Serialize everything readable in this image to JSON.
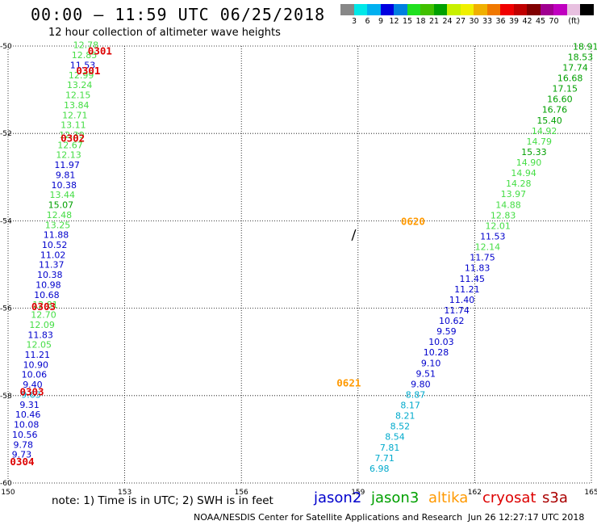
{
  "header": {
    "title": "00:00 – 11:59 UTC 06/25/2018",
    "subtitle": "12 hour collection of altimeter wave heights"
  },
  "legend": {
    "unit": "(ft)",
    "colors": [
      "#888888",
      "#00e8e8",
      "#00b0f0",
      "#0000e0",
      "#0080e0",
      "#20e020",
      "#40c000",
      "#00a000",
      "#c8f000",
      "#f0f000",
      "#f0b000",
      "#f07800",
      "#f00000",
      "#c00000",
      "#800000",
      "#a00090",
      "#c000c0",
      "#e8c0e0",
      "#000000"
    ],
    "labels": [
      "3",
      "6",
      "9",
      "12",
      "15",
      "18",
      "21",
      "24",
      "27",
      "30",
      "33",
      "36",
      "39",
      "42",
      "45",
      "70"
    ]
  },
  "axes": {
    "lon_ticks": [
      150,
      153,
      156,
      159,
      162,
      165
    ],
    "lat_ticks": [
      -50,
      -52,
      -54,
      -56,
      -58,
      -60
    ]
  },
  "colors": {
    "jason2": "#0000cc",
    "jason3": "#00a000",
    "altika": "#ff9900",
    "cryosat": "#dd0000",
    "s3a": "#aa0000",
    "yellow": "#ccdd00",
    "cyan": "#00aacc",
    "lightgreen": "#44dd44"
  },
  "passes": [
    {
      "time": "0301",
      "lon": 152.05,
      "lat": -50.1,
      "color": "cryosat"
    },
    {
      "time": "0301",
      "lon": 151.75,
      "lat": -50.55,
      "color": "cryosat"
    },
    {
      "time": "0302",
      "lon": 151.35,
      "lat": -52.1,
      "color": "cryosat"
    },
    {
      "time": "0303",
      "lon": 150.6,
      "lat": -55.95,
      "color": "cryosat"
    },
    {
      "time": "0303",
      "lon": 150.3,
      "lat": -57.9,
      "color": "cryosat"
    },
    {
      "time": "0304",
      "lon": 150.05,
      "lat": -59.5,
      "color": "cryosat"
    },
    {
      "time": "0620",
      "lon": 160.1,
      "lat": -54.0,
      "color": "altika"
    },
    {
      "time": "0621",
      "lon": 158.45,
      "lat": -57.7,
      "color": "altika"
    }
  ],
  "left_track": [
    {
      "v": "12.78",
      "c": "lightgreen"
    },
    {
      "v": "12.85",
      "c": "lightgreen"
    },
    {
      "v": "11.53",
      "c": "jason2"
    },
    {
      "v": "12.99",
      "c": "lightgreen"
    },
    {
      "v": "13.24",
      "c": "lightgreen"
    },
    {
      "v": "12.15",
      "c": "lightgreen"
    },
    {
      "v": "13.84",
      "c": "lightgreen"
    },
    {
      "v": "12.71",
      "c": "lightgreen"
    },
    {
      "v": "13.11",
      "c": "lightgreen"
    },
    {
      "v": "12.39",
      "c": "lightgreen"
    },
    {
      "v": "12.67",
      "c": "lightgreen"
    },
    {
      "v": "12.13",
      "c": "lightgreen"
    },
    {
      "v": "11.97",
      "c": "jason2"
    },
    {
      "v": "9.81",
      "c": "jason2"
    },
    {
      "v": "10.38",
      "c": "jason2"
    },
    {
      "v": "13.44",
      "c": "lightgreen"
    },
    {
      "v": "15.07",
      "c": "jason3"
    },
    {
      "v": "12.48",
      "c": "lightgreen"
    },
    {
      "v": "13.25",
      "c": "lightgreen"
    },
    {
      "v": "11.88",
      "c": "jason2"
    },
    {
      "v": "10.52",
      "c": "jason2"
    },
    {
      "v": "11.02",
      "c": "jason2"
    },
    {
      "v": "11.37",
      "c": "jason2"
    },
    {
      "v": "10.38",
      "c": "jason2"
    },
    {
      "v": "10.98",
      "c": "jason2"
    },
    {
      "v": "10.68",
      "c": "jason2"
    },
    {
      "v": "12.81",
      "c": "lightgreen"
    },
    {
      "v": "12.70",
      "c": "lightgreen"
    },
    {
      "v": "12.09",
      "c": "lightgreen"
    },
    {
      "v": "11.83",
      "c": "jason2"
    },
    {
      "v": "12.05",
      "c": "lightgreen"
    },
    {
      "v": "11.21",
      "c": "jason2"
    },
    {
      "v": "10.90",
      "c": "jason2"
    },
    {
      "v": "10.06",
      "c": "jason2"
    },
    {
      "v": "9.40",
      "c": "jason2"
    },
    {
      "v": "9.63",
      "c": "cyan"
    },
    {
      "v": "9.31",
      "c": "jason2"
    },
    {
      "v": "10.46",
      "c": "jason2"
    },
    {
      "v": "10.08",
      "c": "jason2"
    },
    {
      "v": "10.56",
      "c": "jason2"
    },
    {
      "v": "9.78",
      "c": "jason2"
    },
    {
      "v": "9.73",
      "c": "jason2"
    }
  ],
  "right_track": [
    {
      "v": "18.91",
      "c": "jason3"
    },
    {
      "v": "18.53",
      "c": "jason3"
    },
    {
      "v": "17.74",
      "c": "jason3"
    },
    {
      "v": "16.68",
      "c": "jason3"
    },
    {
      "v": "17.15",
      "c": "jason3"
    },
    {
      "v": "16.60",
      "c": "jason3"
    },
    {
      "v": "16.76",
      "c": "jason3"
    },
    {
      "v": "15.40",
      "c": "jason3"
    },
    {
      "v": "14.92",
      "c": "lightgreen"
    },
    {
      "v": "14.79",
      "c": "lightgreen"
    },
    {
      "v": "15.33",
      "c": "jason3"
    },
    {
      "v": "14.90",
      "c": "lightgreen"
    },
    {
      "v": "14.94",
      "c": "lightgreen"
    },
    {
      "v": "14.28",
      "c": "lightgreen"
    },
    {
      "v": "13.97",
      "c": "lightgreen"
    },
    {
      "v": "14.88",
      "c": "lightgreen"
    },
    {
      "v": "12.83",
      "c": "lightgreen"
    },
    {
      "v": "12.01",
      "c": "lightgreen"
    },
    {
      "v": "11.53",
      "c": "jason2"
    },
    {
      "v": "12.14",
      "c": "lightgreen"
    },
    {
      "v": "11.75",
      "c": "jason2"
    },
    {
      "v": "11.83",
      "c": "jason2"
    },
    {
      "v": "11.45",
      "c": "jason2"
    },
    {
      "v": "11.21",
      "c": "jason2"
    },
    {
      "v": "11.40",
      "c": "jason2"
    },
    {
      "v": "11.74",
      "c": "jason2"
    },
    {
      "v": "10.62",
      "c": "jason2"
    },
    {
      "v": "9.59",
      "c": "jason2"
    },
    {
      "v": "10.03",
      "c": "jason2"
    },
    {
      "v": "10.28",
      "c": "jason2"
    },
    {
      "v": "9.10",
      "c": "jason2"
    },
    {
      "v": "9.51",
      "c": "jason2"
    },
    {
      "v": "9.80",
      "c": "jason2"
    },
    {
      "v": "8.87",
      "c": "cyan"
    },
    {
      "v": "8.17",
      "c": "cyan"
    },
    {
      "v": "8.21",
      "c": "cyan"
    },
    {
      "v": "8.52",
      "c": "cyan"
    },
    {
      "v": "8.54",
      "c": "cyan"
    },
    {
      "v": "7.81",
      "c": "cyan"
    },
    {
      "v": "7.71",
      "c": "cyan"
    },
    {
      "v": "6.98",
      "c": "cyan"
    }
  ],
  "footer": {
    "note": "note: 1) Time is in UTC; 2) SWH is in feet",
    "satellites": [
      {
        "name": "jason2",
        "color": "#0000cc"
      },
      {
        "name": "jason3",
        "color": "#00a000"
      },
      {
        "name": "altika",
        "color": "#ff9900"
      },
      {
        "name": "cryosat",
        "color": "#dd0000"
      },
      {
        "name": "s3a",
        "color": "#aa0000"
      }
    ],
    "credit": "NOAA/NESDIS Center for Satellite Applications and Research",
    "stamp": "Jun 26 12:27:17 UTC 2018"
  }
}
